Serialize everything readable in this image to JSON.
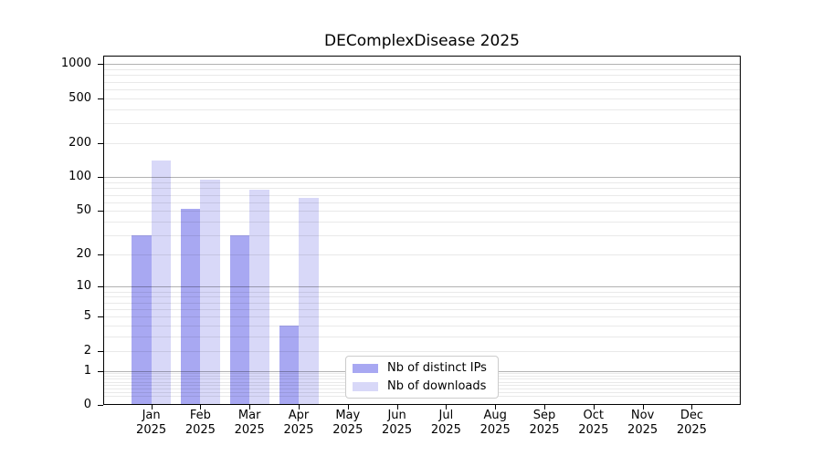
{
  "chart_data": {
    "type": "bar",
    "title": "DEComplexDisease 2025",
    "year_label": "2025",
    "categories": [
      "Jan",
      "Feb",
      "Mar",
      "Apr",
      "May",
      "Jun",
      "Jul",
      "Aug",
      "Sep",
      "Oct",
      "Nov",
      "Dec"
    ],
    "series": [
      {
        "name": "Nb of distinct IPs",
        "color": "#a8a8f2",
        "values": [
          30,
          52,
          30,
          4,
          0,
          0,
          0,
          0,
          0,
          0,
          0,
          0
        ]
      },
      {
        "name": "Nb of downloads",
        "color": "#d8d8f8",
        "values": [
          140,
          95,
          78,
          65,
          0,
          0,
          0,
          0,
          0,
          0,
          0,
          0
        ]
      }
    ],
    "y_axis": {
      "scale": "log1p",
      "ticks": [
        0,
        1,
        2,
        5,
        10,
        20,
        50,
        100,
        200,
        500,
        1000
      ],
      "ylim": [
        0,
        1200
      ]
    },
    "x_axis": {
      "tick_label_format": "Month over Year, two lines"
    },
    "grid": {
      "enabled": true,
      "major_lines": [
        1,
        10,
        100,
        1000
      ],
      "minor_bases": [
        0.1,
        1,
        10,
        100
      ],
      "major_color": "#b0b0b0",
      "minor_color": "#e9e9e9",
      "drawn_above_bars": true
    },
    "legend": {
      "position": "lower-center",
      "background": "#ffffff",
      "border_color": "#cccccc"
    }
  }
}
